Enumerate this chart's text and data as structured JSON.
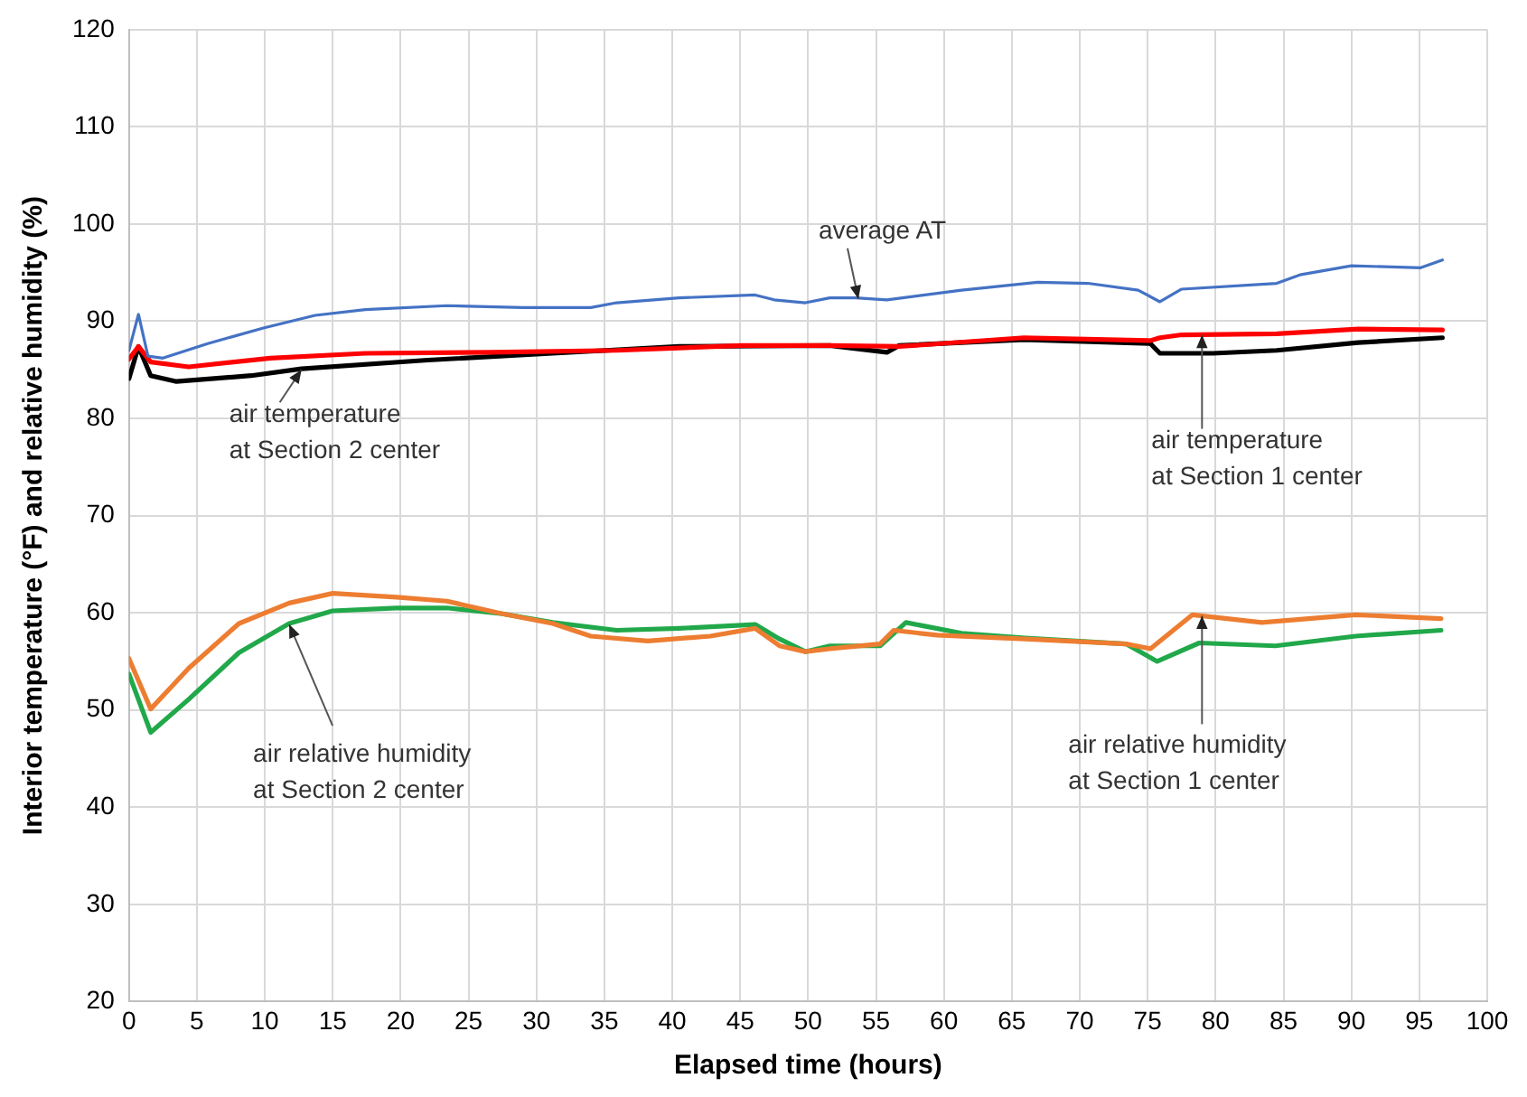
{
  "chart_data": {
    "type": "line",
    "xlabel": "Elapsed time (hours)",
    "ylabel": "Interior temperature (°F) and relative humidity (%)",
    "xlim": [
      0,
      100
    ],
    "xticks": [
      0,
      5,
      10,
      15,
      20,
      25,
      30,
      35,
      40,
      45,
      50,
      55,
      60,
      65,
      70,
      75,
      80,
      85,
      90,
      95,
      100
    ],
    "ylim": [
      20,
      120
    ],
    "yticks": [
      20,
      30,
      40,
      50,
      60,
      70,
      80,
      90,
      100,
      110,
      120
    ],
    "grid": true,
    "legend": false,
    "marker": "none",
    "line_style": "solid",
    "series": [
      {
        "color": "#4472c4",
        "x": [
          0,
          0.7,
          1.4,
          2.5,
          5.8,
          9.9,
          13.7,
          17.4,
          23.4,
          29,
          34,
          35.9,
          40.5,
          46.1,
          47.5,
          49.8,
          51.6,
          53.5,
          55.8,
          61.3,
          66.9,
          70.6,
          74.3,
          75.9,
          77.5,
          84.5,
          86.3,
          90,
          95.1,
          96.7
        ],
        "values": [
          87,
          90.7,
          86.4,
          86.2,
          87.7,
          89.3,
          90.6,
          91.2,
          91.6,
          91.4,
          91.4,
          91.9,
          92.4,
          92.7,
          92.2,
          91.9,
          92.4,
          92.4,
          92.2,
          93.2,
          94,
          93.9,
          93.2,
          92,
          93.3,
          93.9,
          94.8,
          95.7,
          95.5,
          96.3
        ]
      },
      {
        "color": "#ff0000",
        "x": [
          0,
          0.7,
          1.6,
          4.4,
          10.4,
          17.4,
          26.6,
          35.9,
          45.1,
          51.6,
          56.7,
          65.9,
          75.2,
          75.9,
          77.5,
          84.5,
          90.5,
          96.7
        ],
        "values": [
          86.1,
          87.4,
          85.8,
          85.3,
          86.2,
          86.7,
          86.8,
          87,
          87.5,
          87.5,
          87.4,
          88.3,
          88,
          88.3,
          88.6,
          88.7,
          89.2,
          89.1
        ]
      },
      {
        "color": "#000000",
        "x": [
          0,
          0.7,
          1.6,
          3.5,
          9,
          12.7,
          22,
          31.2,
          40.5,
          51.6,
          55.8,
          56.7,
          65.9,
          75.2,
          75.9,
          79.8,
          84.5,
          90.5,
          96.7
        ],
        "values": [
          84.1,
          87.4,
          84.4,
          83.8,
          84.4,
          85.1,
          86,
          86.7,
          87.4,
          87.5,
          86.8,
          87.5,
          88.1,
          87.7,
          86.7,
          86.7,
          87,
          87.8,
          88.3
        ]
      },
      {
        "color": "#ed7d31",
        "x": [
          0,
          1.6,
          4.4,
          8.1,
          11.8,
          15,
          19.7,
          23.4,
          27.5,
          31.2,
          34,
          38.2,
          42.8,
          46.1,
          47.9,
          49.8,
          51.6,
          55.3,
          56.3,
          59.5,
          66,
          73.4,
          75.2,
          78.3,
          83.4,
          90.3,
          96.6
        ],
        "values": [
          55.3,
          50.1,
          54.3,
          58.9,
          61,
          62,
          61.6,
          61.2,
          59.9,
          58.9,
          57.6,
          57.1,
          57.6,
          58.4,
          56.6,
          56,
          56.3,
          56.8,
          58.2,
          57.7,
          57.3,
          56.8,
          56.3,
          59.8,
          59,
          59.8,
          59.4
        ]
      },
      {
        "color": "#21a84a",
        "x": [
          0,
          1.6,
          4.4,
          8.1,
          11.8,
          15,
          19.7,
          23.4,
          27.5,
          31.2,
          35.9,
          40.5,
          46.1,
          47.9,
          49.8,
          51.6,
          55.3,
          57.2,
          61.3,
          66,
          73.4,
          75.7,
          78.8,
          84.4,
          90.3,
          96.6
        ],
        "values": [
          53.7,
          47.7,
          51.1,
          55.9,
          58.9,
          60.2,
          60.5,
          60.5,
          59.9,
          59,
          58.2,
          58.4,
          58.8,
          57.3,
          56,
          56.6,
          56.6,
          59,
          57.9,
          57.4,
          56.8,
          55,
          56.9,
          56.6,
          57.6,
          58.2
        ]
      }
    ],
    "annotations": [
      {
        "text": "average AT",
        "x": 53.7,
        "y": 92.3
      },
      {
        "text": "air temperature\nat Section 2 center",
        "x": 12.7,
        "y": 85
      },
      {
        "text": "air temperature\nat Section 1 center",
        "x": 79,
        "y": 88.6
      },
      {
        "text": "air relative humidity\nat Section 2 center",
        "x": 11.8,
        "y": 58.8
      },
      {
        "text": "air relative humidity\nat Section 1 center",
        "x": 79,
        "y": 59.7
      }
    ]
  }
}
